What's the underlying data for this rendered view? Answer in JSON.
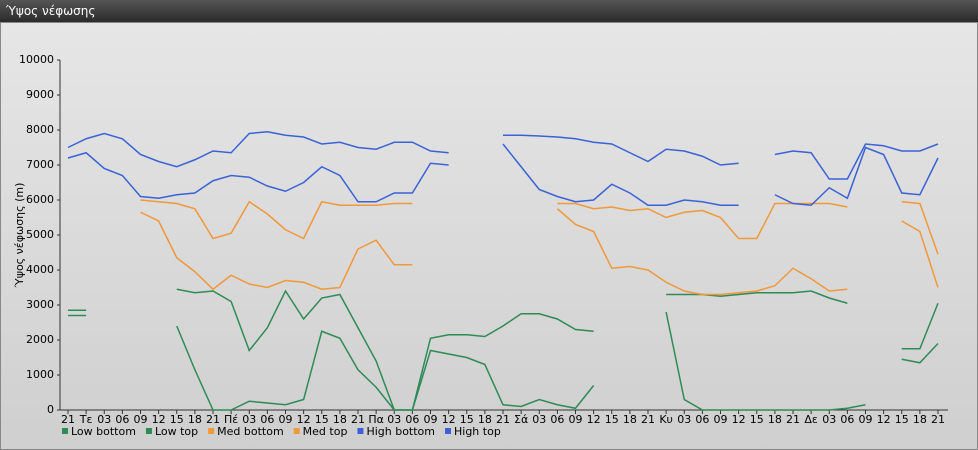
{
  "window_title": "Ύψος νέφωσης",
  "chart_data": {
    "type": "line",
    "ylabel": "Ύψος νέφωσης (m)",
    "categories": [
      "21",
      "Τε",
      "03",
      "06",
      "09",
      "12",
      "15",
      "18",
      "21",
      "Πέ",
      "03",
      "06",
      "09",
      "12",
      "15",
      "18",
      "21",
      "Πα",
      "03",
      "06",
      "09",
      "12",
      "15",
      "18",
      "21",
      "Σά",
      "03",
      "06",
      "09",
      "12",
      "15",
      "18",
      "21",
      "Κυ",
      "03",
      "06",
      "09",
      "12",
      "15",
      "18",
      "21",
      "Δε",
      "03",
      "06",
      "09",
      "12",
      "15",
      "18",
      "21"
    ],
    "ylim": [
      0,
      10000
    ],
    "yticks": [
      0,
      1000,
      2000,
      3000,
      4000,
      5000,
      6000,
      7000,
      8000,
      9000,
      10000
    ],
    "grid": false,
    "legend": "bottom",
    "series": [
      {
        "name": "Low bottom",
        "color": "#2e8b57",
        "values": [
          2700,
          2700,
          null,
          null,
          null,
          null,
          2400,
          1150,
          0,
          0,
          250,
          200,
          150,
          300,
          2250,
          2050,
          1150,
          650,
          0,
          0,
          1700,
          1600,
          1500,
          1300,
          150,
          100,
          300,
          150,
          50,
          700,
          null,
          null,
          null,
          2800,
          300,
          0,
          0,
          0,
          0,
          0,
          0,
          0,
          0,
          50,
          150,
          null,
          1450,
          1350,
          1900
        ]
      },
      {
        "name": "Low top",
        "color": "#2e8b57",
        "values": [
          2850,
          2850,
          null,
          null,
          null,
          null,
          3450,
          3350,
          3400,
          3100,
          1700,
          2350,
          3400,
          2600,
          3200,
          3300,
          2350,
          1400,
          0,
          0,
          2050,
          2150,
          2150,
          2100,
          2400,
          2750,
          2750,
          2600,
          2300,
          2250,
          null,
          null,
          null,
          3300,
          3300,
          3300,
          3250,
          3300,
          3350,
          3350,
          3350,
          3400,
          3200,
          3050,
          null,
          null,
          1750,
          1750,
          3050
        ]
      },
      {
        "name": "Med bottom",
        "color": "#f0983a",
        "values": [
          null,
          null,
          null,
          null,
          5650,
          5400,
          4350,
          3950,
          3450,
          3850,
          3600,
          3500,
          3700,
          3650,
          3450,
          3500,
          4600,
          4850,
          4150,
          4150,
          null,
          null,
          null,
          null,
          null,
          null,
          null,
          5750,
          5300,
          5100,
          4050,
          4100,
          4000,
          3650,
          3400,
          3300,
          3300,
          3350,
          3400,
          3550,
          4050,
          3750,
          3400,
          3450,
          null,
          null,
          5400,
          5100,
          3500
        ]
      },
      {
        "name": "Med top",
        "color": "#f0983a",
        "values": [
          null,
          null,
          null,
          null,
          6000,
          5950,
          5900,
          5750,
          4900,
          5050,
          5950,
          5600,
          5150,
          4900,
          5950,
          5850,
          5850,
          5850,
          5900,
          5900,
          null,
          null,
          null,
          null,
          null,
          null,
          null,
          5900,
          5900,
          5750,
          5800,
          5700,
          5750,
          5500,
          5650,
          5700,
          5500,
          4900,
          4900,
          5900,
          5900,
          5900,
          5900,
          5800,
          null,
          null,
          5950,
          5900,
          4450
        ]
      },
      {
        "name": "High bottom",
        "color": "#3a62d6",
        "values": [
          7200,
          7350,
          6900,
          6700,
          6100,
          6050,
          6150,
          6200,
          6550,
          6700,
          6650,
          6400,
          6250,
          6500,
          6950,
          6700,
          5950,
          5950,
          6200,
          6200,
          7050,
          7000,
          null,
          null,
          7600,
          6950,
          6300,
          6100,
          5950,
          6000,
          6450,
          6200,
          5850,
          5850,
          6000,
          5950,
          5850,
          5850,
          null,
          6150,
          5900,
          5850,
          6350,
          6050,
          7500,
          7300,
          6200,
          6150,
          7200
        ]
      },
      {
        "name": "High top",
        "color": "#3a62d6",
        "values": [
          7500,
          7750,
          7900,
          7750,
          7300,
          7100,
          6950,
          7150,
          7400,
          7350,
          7900,
          7950,
          7850,
          7800,
          7600,
          7650,
          7500,
          7450,
          7650,
          7650,
          7400,
          7350,
          null,
          null,
          7850,
          7850,
          7830,
          7800,
          7750,
          7650,
          7600,
          7350,
          7100,
          7450,
          7400,
          7250,
          7000,
          7050,
          null,
          7300,
          7400,
          7350,
          6600,
          6600,
          7600,
          7550,
          7400,
          7400,
          7600
        ]
      }
    ]
  }
}
